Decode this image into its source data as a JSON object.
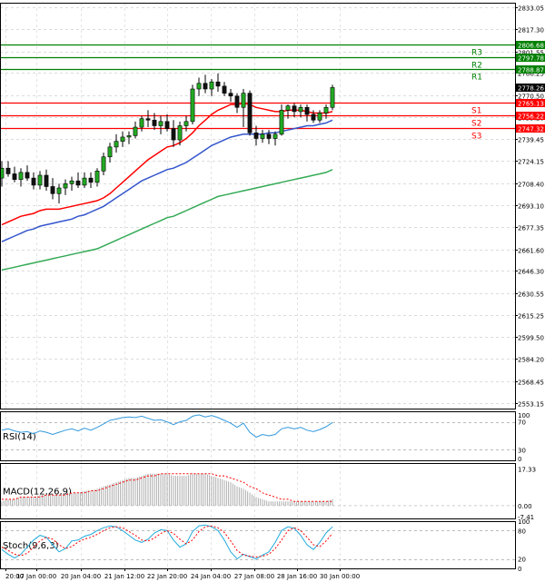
{
  "chart_data": {
    "type": "candlestick",
    "title": "",
    "x_tick_labels": [
      "20:00",
      "17 Jan 00:00",
      "20 Jan 04:00",
      "21 Jan 12:00",
      "22 Jan 20:00",
      "24 Jan 04:00",
      "27 Jan 08:00",
      "28 Jan 16:00",
      "30 Jan 00:00"
    ],
    "price_axis": {
      "ylim": [
        2549.0,
        2836.0
      ],
      "tick_labels": [
        "2833.05",
        "2817.30",
        "2801.55",
        "2786.25",
        "2770.50",
        "2755.20",
        "2739.45",
        "2724.15",
        "2708.40",
        "2693.10",
        "2677.35",
        "2661.60",
        "2646.30",
        "2630.55",
        "2615.25",
        "2599.50",
        "2584.20",
        "2568.45",
        "2553.15"
      ],
      "current_price": "2778.26",
      "grid": true
    },
    "price_levels": [
      {
        "name": "R3",
        "value": 2806.68,
        "color": "#008000"
      },
      {
        "name": "R2",
        "value": 2797.78,
        "color": "#008000"
      },
      {
        "name": "R1",
        "value": 2788.87,
        "color": "#008000"
      },
      {
        "name": "S1",
        "value": 2765.13,
        "color": "#ff0000"
      },
      {
        "name": "S2",
        "value": 2756.22,
        "color": "#ff0000"
      },
      {
        "name": "S3",
        "value": 2747.32,
        "color": "#ff0000"
      }
    ],
    "candles": [
      [
        2712,
        2724,
        2706,
        2719
      ],
      [
        2719,
        2724,
        2713,
        2715
      ],
      [
        2715,
        2720,
        2709,
        2711
      ],
      [
        2711,
        2719,
        2706,
        2716
      ],
      [
        2716,
        2721,
        2710,
        2712
      ],
      [
        2712,
        2716,
        2704,
        2707
      ],
      [
        2707,
        2717,
        2704,
        2714
      ],
      [
        2714,
        2718,
        2703,
        2706
      ],
      [
        2706,
        2712,
        2697,
        2701
      ],
      [
        2701,
        2708,
        2694,
        2705
      ],
      [
        2705,
        2711,
        2700,
        2708
      ],
      [
        2708,
        2713,
        2703,
        2710
      ],
      [
        2710,
        2716,
        2705,
        2707
      ],
      [
        2707,
        2716,
        2705,
        2712
      ],
      [
        2712,
        2716,
        2705,
        2709
      ],
      [
        2709,
        2719,
        2706,
        2717
      ],
      [
        2717,
        2730,
        2714,
        2727
      ],
      [
        2727,
        2737,
        2723,
        2734
      ],
      [
        2734,
        2743,
        2730,
        2738
      ],
      [
        2738,
        2745,
        2734,
        2741
      ],
      [
        2741,
        2745,
        2736,
        2742
      ],
      [
        2742,
        2752,
        2740,
        2748
      ],
      [
        2748,
        2756,
        2745,
        2754
      ],
      [
        2754,
        2760,
        2748,
        2753
      ],
      [
        2753,
        2758,
        2746,
        2749
      ],
      [
        2749,
        2756,
        2743,
        2752
      ],
      [
        2752,
        2757,
        2745,
        2747
      ],
      [
        2747,
        2753,
        2734,
        2739
      ],
      [
        2739,
        2752,
        2735,
        2749
      ],
      [
        2749,
        2756,
        2745,
        2752
      ],
      [
        2752,
        2778,
        2750,
        2775
      ],
      [
        2775,
        2783,
        2770,
        2779
      ],
      [
        2779,
        2785,
        2772,
        2775
      ],
      [
        2775,
        2782,
        2770,
        2780
      ],
      [
        2780,
        2786,
        2773,
        2777
      ],
      [
        2777,
        2780,
        2770,
        2772
      ],
      [
        2772,
        2775,
        2766,
        2770
      ],
      [
        2770,
        2772,
        2758,
        2762
      ],
      [
        2762,
        2775,
        2748,
        2772
      ],
      [
        2772,
        2774,
        2742,
        2744
      ],
      [
        2744,
        2749,
        2735,
        2740
      ],
      [
        2740,
        2746,
        2737,
        2743
      ],
      [
        2743,
        2746,
        2736,
        2740
      ],
      [
        2740,
        2745,
        2735,
        2743
      ],
      [
        2743,
        2764,
        2742,
        2760
      ],
      [
        2760,
        2764,
        2754,
        2763
      ],
      [
        2763,
        2765,
        2755,
        2759
      ],
      [
        2759,
        2764,
        2755,
        2762
      ],
      [
        2762,
        2764,
        2752,
        2757
      ],
      [
        2757,
        2760,
        2751,
        2753
      ],
      [
        2753,
        2760,
        2751,
        2758
      ],
      [
        2758,
        2764,
        2754,
        2762
      ],
      [
        2762,
        2778,
        2760,
        2776
      ]
    ],
    "moving_averages": [
      {
        "color": "#ff0000",
        "values": [
          2679,
          2681,
          2683,
          2685,
          2686,
          2687,
          2689,
          2690,
          2690,
          2690,
          2691,
          2692,
          2693,
          2694,
          2695,
          2696,
          2698,
          2701,
          2705,
          2709,
          2713,
          2717,
          2721,
          2725,
          2728,
          2731,
          2734,
          2735,
          2737,
          2740,
          2744,
          2749,
          2753,
          2757,
          2760,
          2762,
          2764,
          2764,
          2765,
          2764,
          2762,
          2761,
          2760,
          2759,
          2759,
          2760,
          2760,
          2760,
          2759,
          2758,
          2758,
          2758,
          2759
        ]
      },
      {
        "color": "#3355cc",
        "values": [
          2667,
          2669,
          2671,
          2673,
          2675,
          2676,
          2678,
          2679,
          2680,
          2681,
          2682,
          2683,
          2685,
          2686,
          2688,
          2690,
          2692,
          2695,
          2698,
          2701,
          2704,
          2707,
          2710,
          2712,
          2714,
          2716,
          2718,
          2719,
          2721,
          2723,
          2726,
          2729,
          2732,
          2735,
          2737,
          2739,
          2741,
          2742,
          2743,
          2743,
          2743,
          2743,
          2744,
          2744,
          2745,
          2746,
          2747,
          2748,
          2749,
          2749,
          2750,
          2751,
          2753
        ]
      },
      {
        "color": "#33aa55",
        "values": [
          2647,
          2648,
          2649,
          2650,
          2651,
          2652,
          2653,
          2654,
          2655,
          2656,
          2657,
          2658,
          2659,
          2660,
          2661,
          2662,
          2664,
          2666,
          2668,
          2670,
          2672,
          2674,
          2676,
          2678,
          2680,
          2682,
          2684,
          2685,
          2687,
          2689,
          2691,
          2693,
          2695,
          2697,
          2699,
          2700,
          2701,
          2702,
          2703,
          2704,
          2705,
          2706,
          2707,
          2708,
          2709,
          2710,
          2711,
          2712,
          2713,
          2714,
          2715,
          2716,
          2718
        ]
      }
    ],
    "indicators": [
      {
        "name": "RSI(14)",
        "ylim": [
          15,
          85
        ],
        "tick_labels": [
          "100",
          "70",
          "30",
          "0"
        ],
        "levels": [
          70,
          30
        ],
        "series_color": "#3399dd",
        "values": [
          58,
          60,
          57,
          55,
          56,
          53,
          57,
          55,
          52,
          55,
          58,
          60,
          57,
          61,
          58,
          62,
          67,
          72,
          74,
          76,
          77,
          76,
          78,
          75,
          72,
          73,
          70,
          66,
          70,
          72,
          78,
          80,
          77,
          79,
          76,
          72,
          68,
          62,
          68,
          55,
          48,
          52,
          50,
          52,
          60,
          62,
          60,
          62,
          58,
          56,
          59,
          63,
          69
        ]
      },
      {
        "name": "MACD(12,26,9)",
        "ylim": [
          -6,
          20
        ],
        "tick_labels": [
          "17.33",
          "0.00",
          "-7.41"
        ],
        "histogram_color": "#999999",
        "signal_color": "#ff0000",
        "histogram": [
          2,
          3,
          3,
          4,
          4,
          4,
          5,
          5,
          5,
          5,
          6,
          6,
          6,
          7,
          7,
          8,
          9,
          10,
          11,
          12,
          13,
          13,
          14,
          15,
          15,
          15,
          15,
          14,
          14,
          14,
          15,
          15,
          15,
          14,
          13,
          12,
          11,
          9,
          8,
          6,
          4,
          3,
          2,
          2,
          2,
          2,
          2,
          2,
          2,
          2,
          2,
          2,
          3
        ],
        "signal": [
          3,
          3,
          3,
          4,
          4,
          4,
          4,
          5,
          5,
          5,
          5,
          6,
          6,
          6,
          7,
          7,
          8,
          9,
          10,
          11,
          12,
          12,
          13,
          14,
          14,
          15,
          15,
          15,
          15,
          15,
          15,
          15,
          15,
          15,
          14,
          14,
          13,
          12,
          11,
          9,
          8,
          6,
          5,
          4,
          3,
          3,
          2,
          2,
          2,
          2,
          2,
          2,
          2
        ]
      },
      {
        "name": "Stoch(9,6,3)",
        "ylim": [
          0,
          100
        ],
        "tick_labels": [
          "100",
          "80",
          "20",
          "0"
        ],
        "levels": [
          80,
          20
        ],
        "main_color": "#22aadd",
        "signal_color": "#ff0000",
        "main": [
          40,
          30,
          22,
          30,
          45,
          60,
          70,
          66,
          50,
          35,
          42,
          58,
          60,
          68,
          72,
          80,
          86,
          90,
          88,
          80,
          70,
          60,
          55,
          62,
          75,
          82,
          80,
          60,
          45,
          52,
          78,
          90,
          92,
          88,
          80,
          60,
          35,
          20,
          30,
          25,
          20,
          28,
          35,
          55,
          80,
          88,
          85,
          70,
          50,
          40,
          55,
          75,
          88
        ],
        "signal": [
          45,
          38,
          30,
          27,
          32,
          45,
          58,
          66,
          62,
          50,
          42,
          46,
          56,
          62,
          66,
          72,
          80,
          86,
          88,
          86,
          78,
          70,
          60,
          58,
          64,
          74,
          80,
          74,
          62,
          52,
          60,
          78,
          88,
          90,
          86,
          76,
          58,
          38,
          28,
          26,
          24,
          26,
          30,
          42,
          60,
          80,
          86,
          80,
          66,
          50,
          46,
          58,
          74
        ]
      }
    ]
  }
}
